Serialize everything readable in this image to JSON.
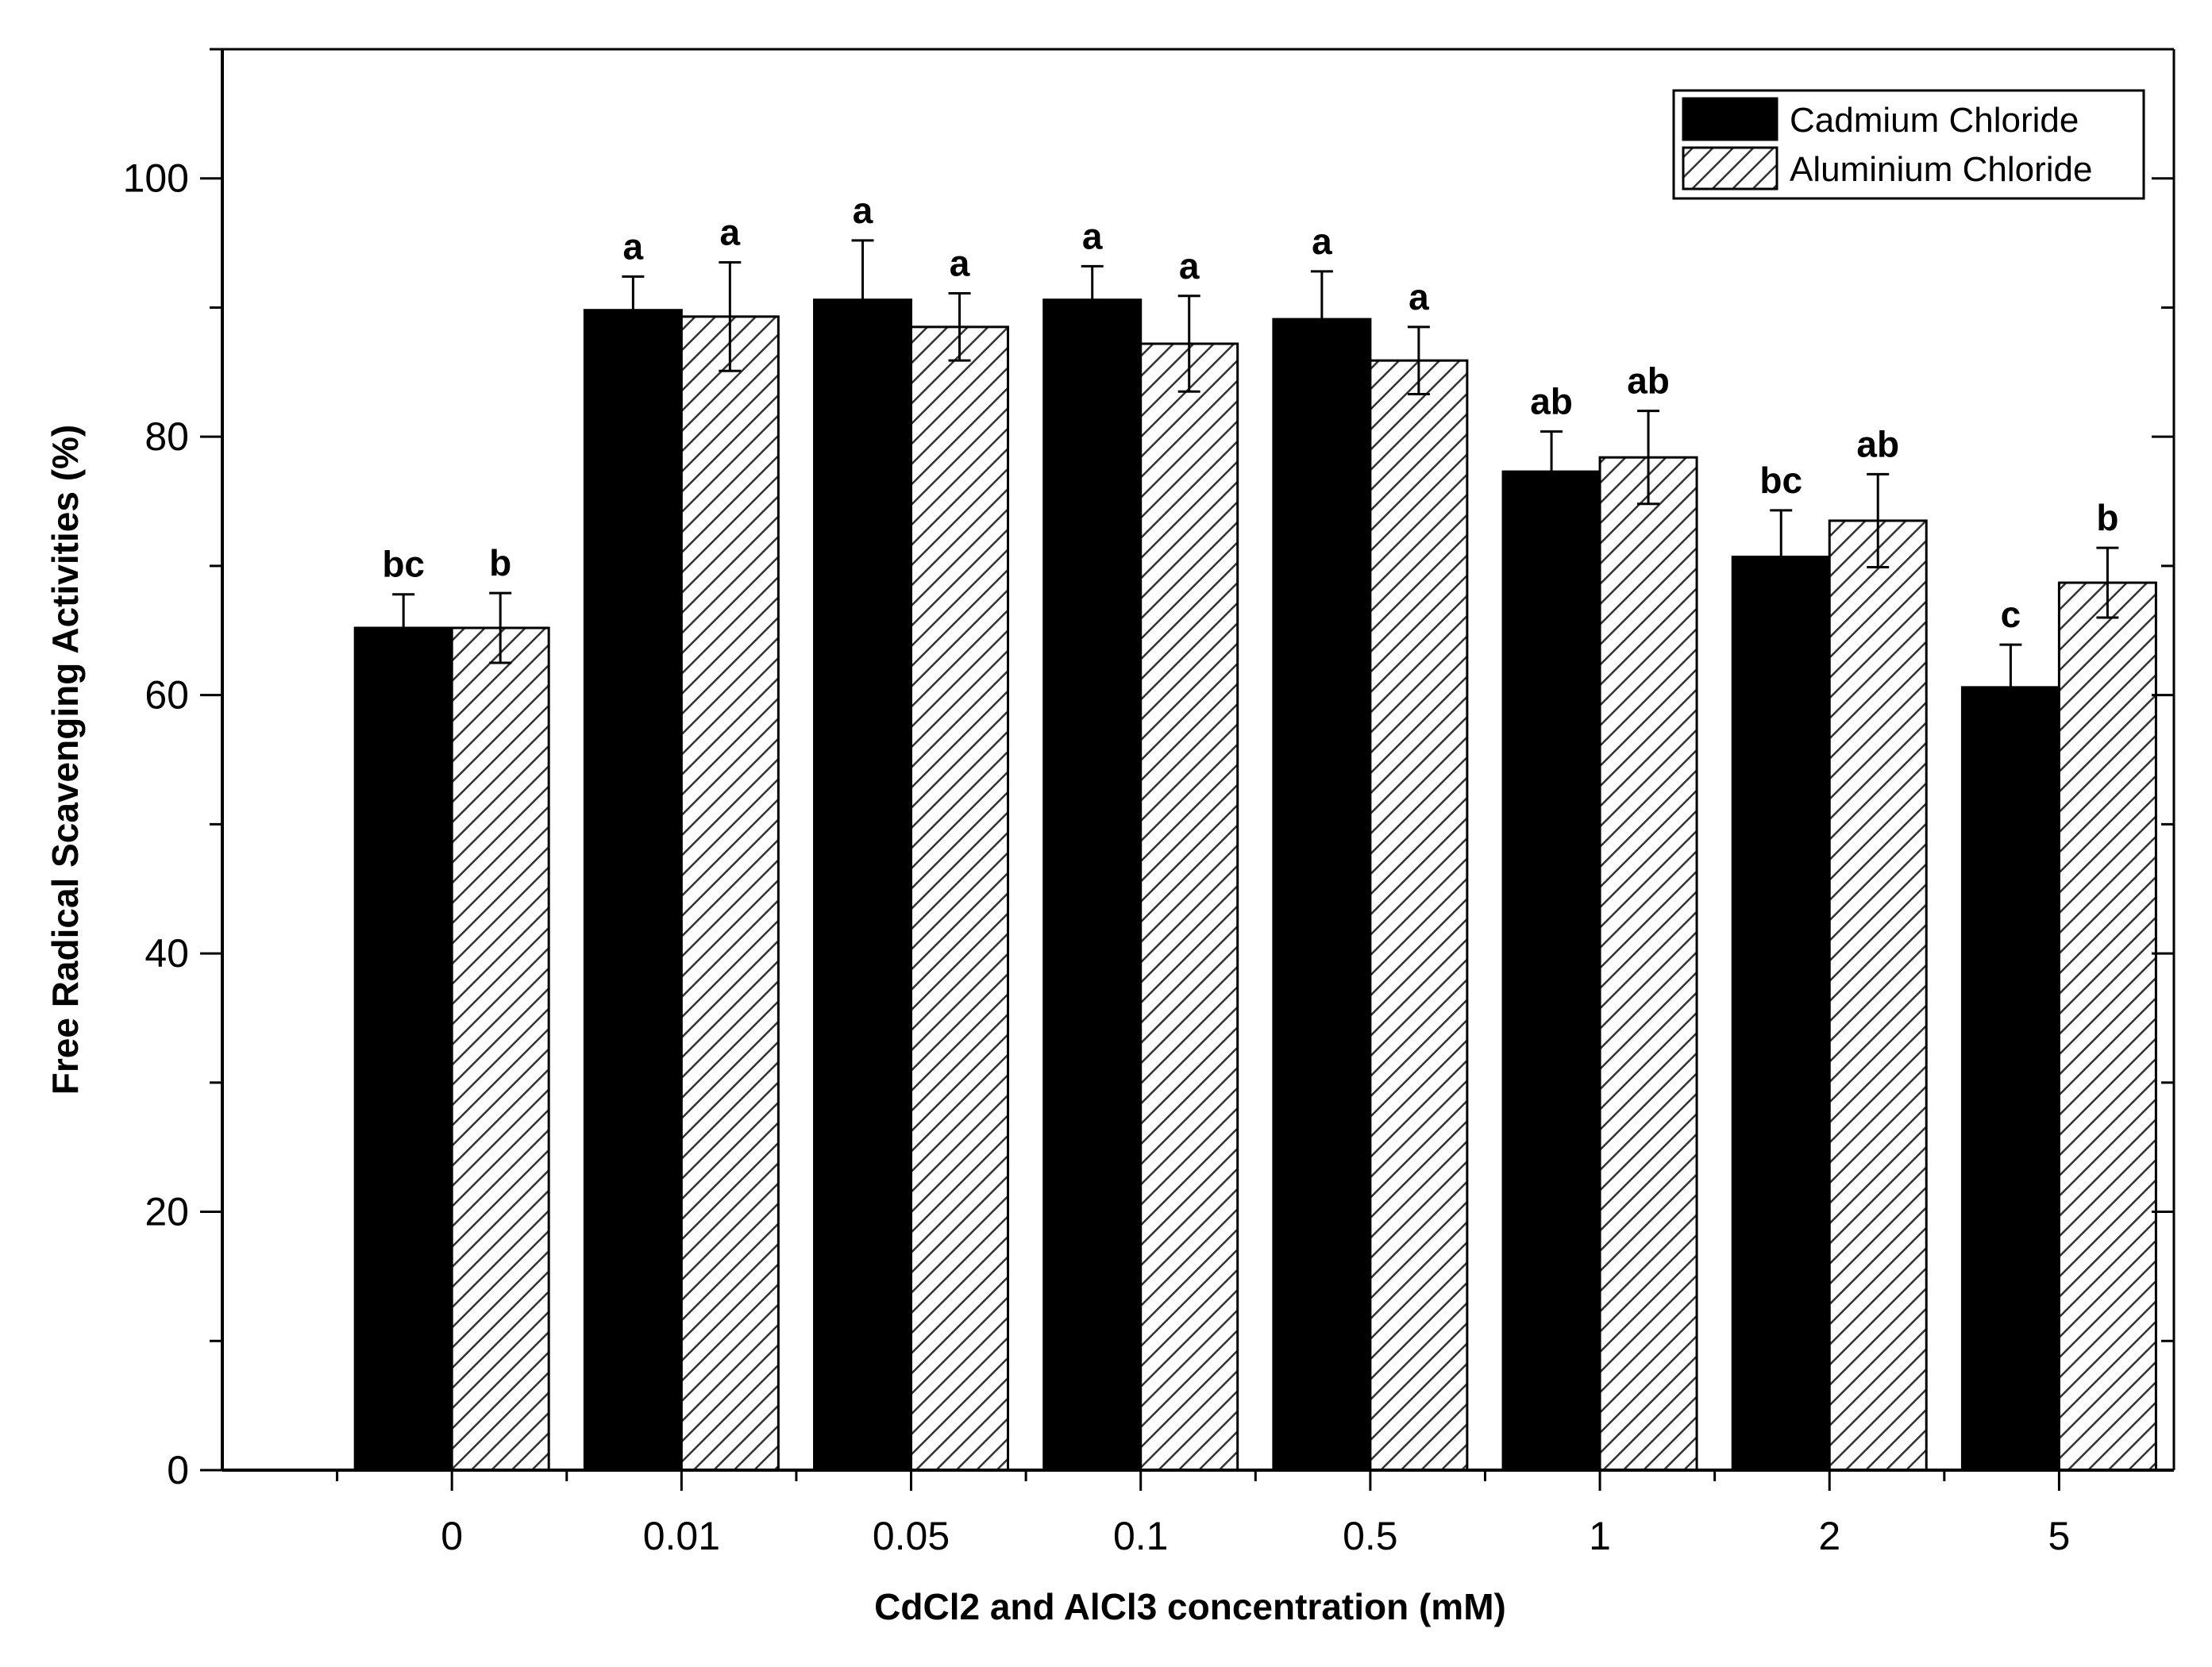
{
  "chart_data": {
    "type": "bar",
    "xlabel": "CdCl2 and AlCl3 concentration (mM)",
    "ylabel": "Free Radical Scavenging Activities (%)",
    "ylim": [
      0,
      110
    ],
    "yticks": [
      0,
      20,
      40,
      60,
      80,
      100
    ],
    "categories": [
      "0",
      "0.01",
      "0.05",
      "0.1",
      "0.5",
      "1",
      "2",
      "5"
    ],
    "legend_position": "top-right",
    "grid": false,
    "series": [
      {
        "name": "Cadmium Chloride",
        "color": "#000000",
        "pattern": "solid",
        "values": [
          65.2,
          89.8,
          90.6,
          90.6,
          89.1,
          77.3,
          70.7,
          60.6
        ],
        "errors": [
          2.6,
          2.6,
          4.6,
          2.6,
          3.7,
          3.1,
          3.6,
          3.3
        ],
        "labels": [
          "bc",
          "a",
          "a",
          "a",
          "a",
          "ab",
          "bc",
          "c"
        ]
      },
      {
        "name": "Aluminium Chloride",
        "color": "#ffffff",
        "pattern": "hatched",
        "values": [
          65.2,
          89.3,
          88.5,
          87.2,
          85.9,
          78.4,
          73.5,
          68.7
        ],
        "errors": [
          2.7,
          4.2,
          2.6,
          3.7,
          2.6,
          3.6,
          3.6,
          2.7
        ],
        "labels": [
          "b",
          "a",
          "a",
          "a",
          "a",
          "ab",
          "ab",
          "b"
        ]
      }
    ]
  }
}
